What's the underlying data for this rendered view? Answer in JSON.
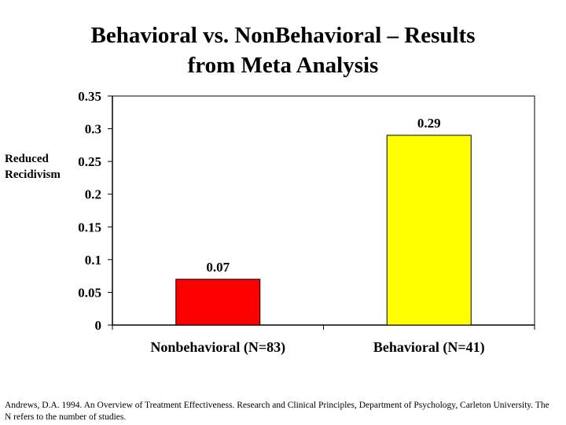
{
  "title": {
    "lines": [
      "Behavioral vs. NonBehavioral – Results",
      "from Meta Analysis"
    ]
  },
  "chart_data": {
    "type": "bar",
    "categories": [
      "Nonbehavioral (N=83)",
      "Behavioral (N=41)"
    ],
    "values": [
      0.07,
      0.29
    ],
    "data_labels": [
      "0.07",
      "0.29"
    ],
    "bar_colors": [
      "#ff0000",
      "#ffff00"
    ],
    "ylabel": "Reduced Recidivism",
    "ylim": [
      0,
      0.35
    ],
    "yticks": [
      "0",
      "0.05",
      "0.1",
      "0.15",
      "0.2",
      "0.25",
      "0.3",
      "0.35"
    ],
    "grid": false,
    "legend": "none"
  },
  "footnote": "Andrews, D.A. 1994.  An Overview of Treatment Effectiveness.  Research and Clinical Principles, Department of Psychology, Carleton University.  The N refers to the number of studies."
}
